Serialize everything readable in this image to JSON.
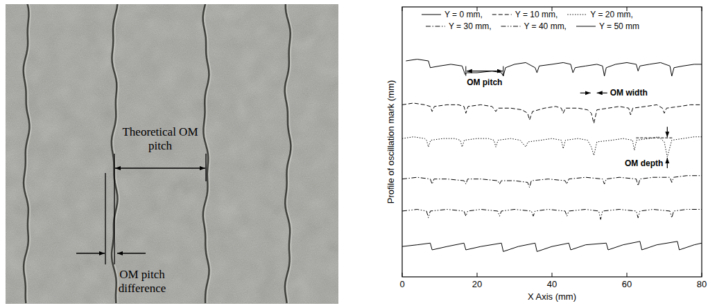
{
  "photo": {
    "theoretical_label": "Theoretical OM pitch",
    "difference_label": "OM pitch difference"
  },
  "chart_data": {
    "type": "line",
    "x_label": "X Axis (mm)",
    "y_label": "Profile of oscillation mark (mm)",
    "xlim": [
      0,
      80
    ],
    "xticks": [
      0,
      20,
      40,
      60,
      80
    ],
    "ylim": [
      0,
      8
    ],
    "tick_labels": "x",
    "grid": false,
    "legend": "top",
    "series": [
      {
        "name": "Y = 0 mm,",
        "color": "#000000",
        "line_style": "solid",
        "x": [
          1,
          4,
          7,
          7.5,
          10,
          13,
          16,
          16.8,
          17.3,
          20,
          24,
          26.5,
          27,
          27.6,
          30,
          33,
          35.5,
          36,
          36.6,
          40,
          43,
          45,
          45.6,
          46.2,
          49,
          52,
          53.5,
          54,
          54.5,
          57,
          60,
          62.5,
          63,
          63.5,
          66,
          69,
          71.5,
          72,
          72.6,
          75,
          78,
          80
        ],
        "values": [
          6.4,
          6.45,
          6.4,
          6.2,
          6.25,
          6.3,
          6.25,
          6.0,
          6.05,
          6.05,
          6.1,
          6.05,
          5.95,
          6.2,
          6.3,
          6.35,
          6.2,
          6.05,
          6.25,
          6.3,
          6.35,
          6.3,
          6.05,
          6.2,
          6.25,
          6.3,
          6.25,
          5.95,
          6.2,
          6.3,
          6.35,
          6.3,
          6.1,
          6.25,
          6.3,
          6.35,
          6.25,
          5.95,
          6.2,
          6.25,
          6.3,
          6.3
        ]
      },
      {
        "name": "Y = 10 mm,",
        "color": "#000000",
        "line_style": "dashed",
        "x": [
          0,
          3,
          6,
          7.5,
          8,
          8.6,
          12,
          15,
          16.5,
          17,
          17.6,
          21,
          24,
          25,
          25.6,
          29,
          32,
          33.5,
          34,
          34.8,
          38,
          41,
          42.5,
          43,
          43.6,
          47,
          49.5,
          50.5,
          51.2,
          52,
          55,
          58,
          60.5,
          61,
          61.6,
          65,
          68,
          69.5,
          70,
          70.6,
          74,
          77,
          80
        ],
        "values": [
          5.1,
          5.15,
          5.1,
          5.05,
          4.9,
          5.05,
          5.1,
          5.1,
          5.05,
          4.85,
          5.05,
          5.1,
          5.05,
          4.9,
          5.0,
          5.0,
          4.95,
          4.85,
          4.65,
          4.9,
          5.0,
          5.05,
          5.0,
          4.85,
          5.0,
          5.0,
          4.95,
          4.85,
          4.55,
          4.95,
          5.0,
          5.05,
          5.0,
          4.8,
          5.0,
          5.05,
          5.1,
          5.0,
          4.85,
          5.0,
          5.05,
          5.1,
          5.1
        ]
      },
      {
        "name": "Y = 20 mm,",
        "color": "#000000",
        "line_style": "dotted",
        "x": [
          0,
          3,
          6,
          6.5,
          7,
          7.6,
          11,
          14,
          15.5,
          16,
          16.6,
          20,
          23,
          24.5,
          25,
          25.6,
          29,
          31.5,
          33,
          33.6,
          37,
          40,
          42.5,
          43,
          43.6,
          47,
          49.5,
          50.5,
          51.2,
          52,
          56,
          59,
          61.5,
          62,
          62.6,
          66,
          68.5,
          70,
          70.8,
          72,
          75,
          78,
          80
        ],
        "values": [
          4.1,
          4.15,
          4.1,
          4.05,
          3.85,
          4.05,
          4.1,
          4.1,
          4.05,
          3.85,
          4.05,
          4.1,
          4.1,
          4.05,
          3.85,
          4.05,
          4.1,
          4.05,
          3.85,
          4.0,
          4.05,
          4.1,
          4.05,
          3.8,
          4.05,
          4.1,
          4.05,
          3.85,
          3.6,
          4.0,
          4.05,
          4.1,
          4.05,
          3.75,
          4.05,
          4.1,
          4.15,
          4.0,
          3.55,
          4.05,
          4.1,
          4.15,
          4.15
        ]
      },
      {
        "name": "Y = 30 mm,",
        "color": "#000000",
        "line_style": "dashdot",
        "x": [
          0,
          4,
          7.5,
          8,
          8.5,
          12,
          16.5,
          17,
          17.5,
          21,
          25.5,
          26,
          26.5,
          30,
          33.5,
          34,
          34.5,
          39,
          43.5,
          44,
          44.5,
          49,
          53.5,
          54,
          54.5,
          58,
          62.5,
          63,
          63.5,
          67,
          71.5,
          72,
          72.5,
          76,
          80
        ],
        "values": [
          2.9,
          2.95,
          2.9,
          2.75,
          2.9,
          2.9,
          2.85,
          2.75,
          2.9,
          2.9,
          2.85,
          2.75,
          2.85,
          2.85,
          2.8,
          2.65,
          2.85,
          2.9,
          2.85,
          2.75,
          2.9,
          2.95,
          2.9,
          2.75,
          2.9,
          2.95,
          2.9,
          2.7,
          2.9,
          2.95,
          2.95,
          2.8,
          2.95,
          3.0,
          3.0
        ]
      },
      {
        "name": "Y = 40 mm,",
        "color": "#000000",
        "line_style": "dashdotdot",
        "x": [
          0,
          4,
          6.5,
          7,
          7.5,
          12,
          16.5,
          17,
          17.5,
          21,
          25.5,
          26,
          26.5,
          30,
          34.5,
          35,
          35.5,
          39,
          43.5,
          44,
          44.5,
          49,
          52.5,
          53,
          53.5,
          58,
          62.5,
          63,
          63.5,
          67,
          71.5,
          72,
          72.5,
          76,
          80
        ],
        "values": [
          1.95,
          2.0,
          1.95,
          1.75,
          1.95,
          2.0,
          1.95,
          1.8,
          1.95,
          2.0,
          1.95,
          1.8,
          1.95,
          2.0,
          1.95,
          1.8,
          1.95,
          2.0,
          1.95,
          1.8,
          1.95,
          2.0,
          1.95,
          1.7,
          1.95,
          2.0,
          1.95,
          1.75,
          1.95,
          2.0,
          1.95,
          1.75,
          1.95,
          2.0,
          2.0
        ]
      },
      {
        "name": "Y = 50 mm",
        "color": "#000000",
        "line_style": "solid",
        "x": [
          0,
          4,
          7.5,
          8,
          12,
          16.5,
          17,
          21,
          26.5,
          27,
          31,
          35.5,
          36,
          40,
          44.5,
          45,
          49,
          54.5,
          55,
          59,
          63.5,
          64,
          68,
          73.5,
          74,
          78,
          80
        ],
        "values": [
          0.9,
          0.95,
          1.0,
          0.8,
          0.9,
          1.0,
          0.8,
          0.9,
          1.0,
          0.75,
          0.9,
          1.0,
          0.75,
          0.9,
          1.0,
          0.8,
          0.95,
          1.0,
          0.8,
          0.95,
          1.05,
          0.8,
          0.95,
          1.05,
          0.8,
          0.95,
          1.0
        ]
      }
    ],
    "annotations": [
      {
        "text": "OM pitch",
        "type": "span",
        "x": [
          17,
          27
        ],
        "y": 6.1
      },
      {
        "text": "OM width",
        "type": "inward",
        "x": [
          50.5,
          51.8
        ],
        "y": 5.45
      },
      {
        "text": "OM depth",
        "type": "vertical",
        "x": 70.8,
        "y": [
          4.12,
          3.55
        ]
      }
    ]
  }
}
